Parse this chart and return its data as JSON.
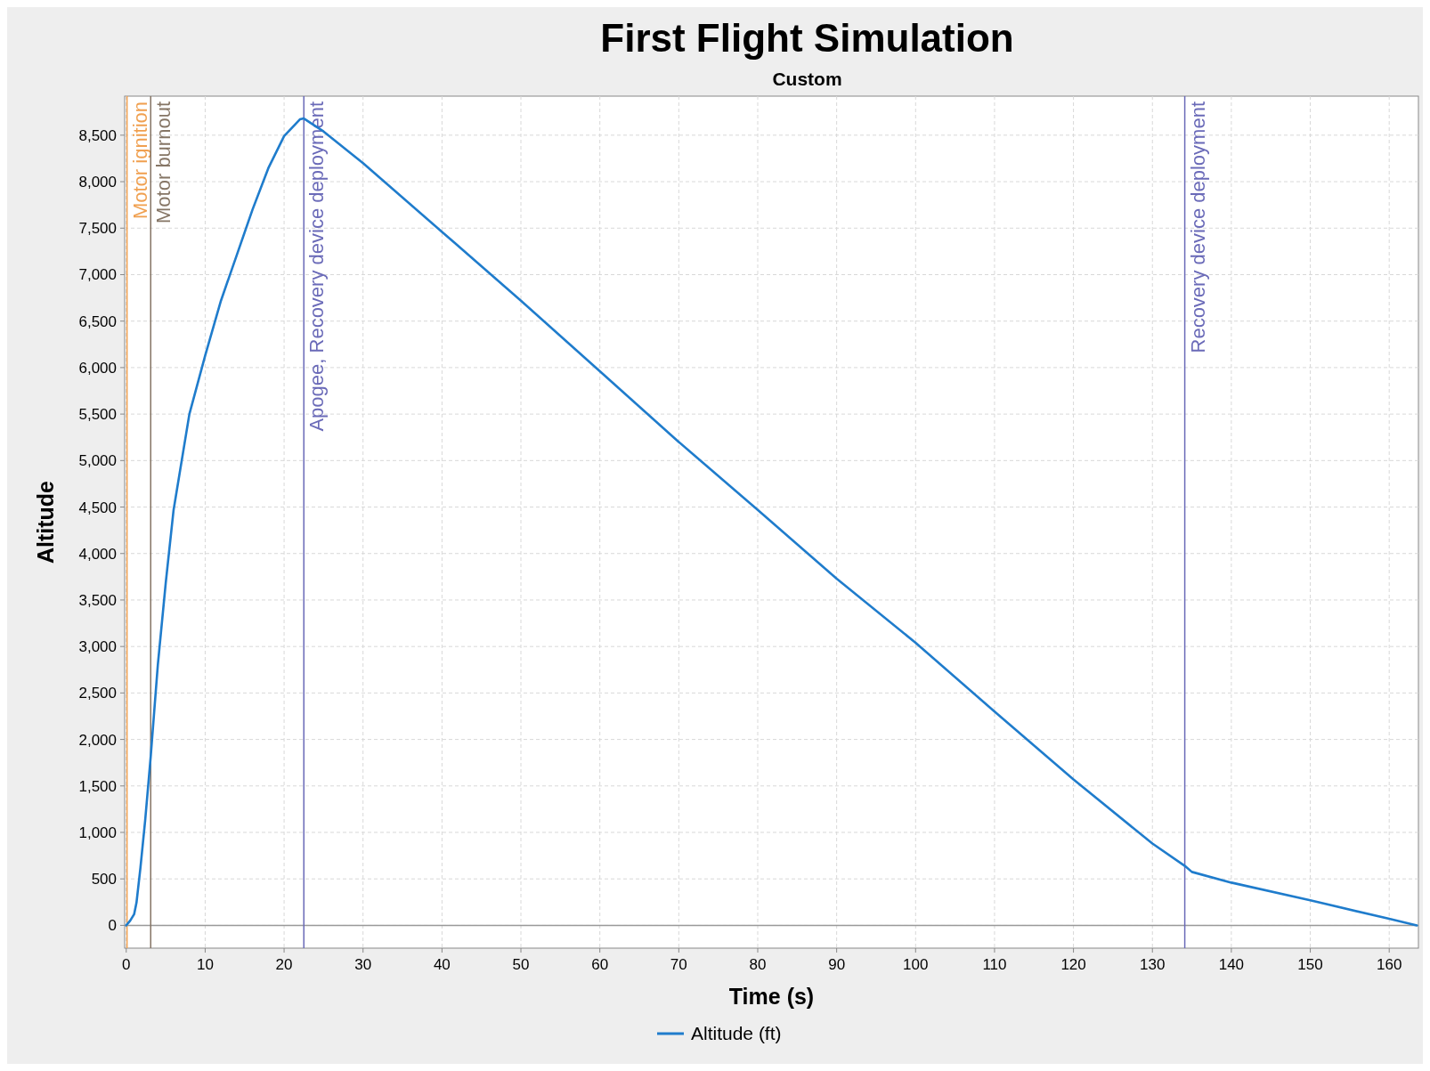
{
  "chart_data": {
    "type": "line",
    "title": "First Flight Simulation",
    "subtitle": "Custom",
    "xlabel": "Time (s)",
    "ylabel": "Altitude",
    "x": [
      0,
      0.5,
      1,
      1.3,
      1.8,
      2.4,
      3.1,
      4,
      5,
      6,
      8,
      10,
      12,
      14,
      16,
      18,
      20,
      22,
      22.5,
      25,
      30,
      40,
      50,
      60,
      70,
      80,
      90,
      100,
      110,
      120,
      130,
      134.1,
      135,
      140,
      150,
      160,
      163.5
    ],
    "series": [
      {
        "name": "Altitude (ft)",
        "color": "#1f7ccc",
        "values": [
          0,
          50,
          120,
          245,
          620,
          1130,
          1815,
          2800,
          3680,
          4470,
          5500,
          6130,
          6720,
          7210,
          7700,
          8145,
          8490,
          8670,
          8680,
          8540,
          8200,
          7460,
          6720,
          5960,
          5200,
          4470,
          3730,
          3040,
          2300,
          1570,
          880,
          640,
          575,
          460,
          270,
          70,
          0
        ]
      }
    ],
    "xlim": [
      -0.2,
      163.7
    ],
    "ylim": [
      -245,
      8920
    ],
    "xticks": [
      0,
      10,
      20,
      30,
      40,
      50,
      60,
      70,
      80,
      90,
      100,
      110,
      120,
      130,
      140,
      150,
      160
    ],
    "yticks": [
      0,
      500,
      {
        "value": 1000,
        "label": "1,000"
      },
      {
        "value": 1500,
        "label": "1,500"
      },
      {
        "value": 2000,
        "label": "2,000"
      },
      {
        "value": 2500,
        "label": "2,500"
      },
      {
        "value": 3000,
        "label": "3,000"
      },
      {
        "value": 3500,
        "label": "3,500"
      },
      {
        "value": 4000,
        "label": "4,000"
      },
      {
        "value": 4500,
        "label": "4,500"
      },
      {
        "value": 5000,
        "label": "5,000"
      },
      {
        "value": 5500,
        "label": "5,500"
      },
      {
        "value": 6000,
        "label": "6,000"
      },
      {
        "value": 6500,
        "label": "6,500"
      },
      {
        "value": 7000,
        "label": "7,000"
      },
      {
        "value": 7500,
        "label": "7,500"
      },
      {
        "value": 8000,
        "label": "8,000"
      },
      {
        "value": 8500,
        "label": "8,500"
      }
    ],
    "ref_lines": [
      {
        "axis": "y",
        "value": 0,
        "label": null,
        "color": "#999999"
      },
      {
        "axis": "x",
        "value": 0.1,
        "label": "Motor ignition",
        "color": "#f0a050"
      },
      {
        "axis": "x",
        "value": 3.1,
        "label": "Motor burnout",
        "color": "#857565"
      },
      {
        "axis": "x",
        "value": 22.5,
        "label": "Apogee, Recovery device deployment",
        "color": "#6a6ab8"
      },
      {
        "axis": "x",
        "value": 134.1,
        "label": "Recovery device deployment",
        "color": "#6a6ab8"
      }
    ],
    "grid": true,
    "legend": "bottom",
    "line_style": "solid",
    "marker": "none"
  }
}
